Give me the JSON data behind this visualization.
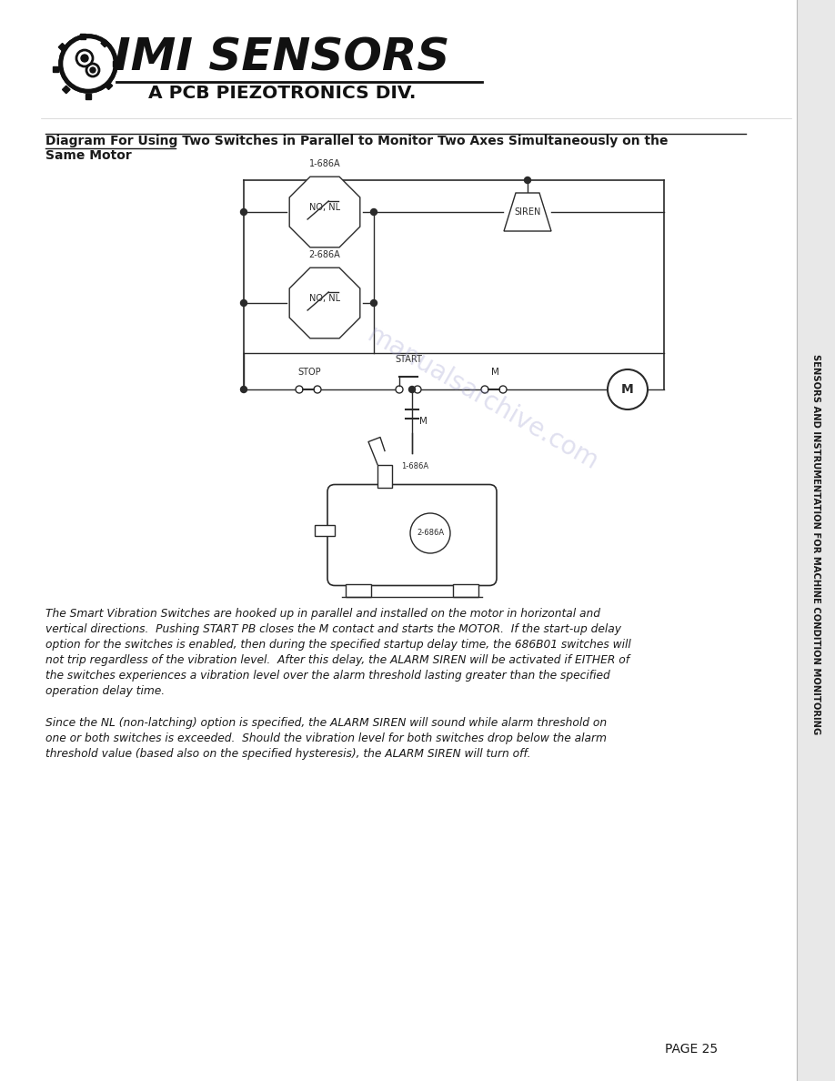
{
  "title_line1": "Diagram For Using Two Switches in Parallel to Monitor Two Axes Simultaneously on the",
  "title_line2": "Same Motor",
  "sidebar_text": "SENSORS AND INSTRUMENTATION FOR MACHINE CONDITION MONITORING",
  "page_number": "PAGE 25",
  "para1_line1": "The Smart Vibration Switches are hooked up in parallel and installed on the motor in horizontal and",
  "para1_line2": "vertical directions.  Pushing START PB closes the M contact and starts the MOTOR.  If the start-up delay",
  "para1_line3": "option for the switches is enabled, then during the specified startup delay time, the 686B01 switches will",
  "para1_line4": "not trip regardless of the vibration level.  After this delay, the ALARM SIREN will be activated if EITHER of",
  "para1_line5": "the switches experiences a vibration level over the alarm threshold lasting greater than the specified",
  "para1_line6": "operation delay time.",
  "para2_line1": "Since the NL (non-latching) option is specified, the ALARM SIREN will sound while alarm threshold on",
  "para2_line2": "one or both switches is exceeded.  Should the vibration level for both switches drop below the alarm",
  "para2_line3": "threshold value (based also on the specified hysteresis), the ALARM SIREN will turn off.",
  "watermark": "manualsarchive.com",
  "bg_color": "#ffffff",
  "line_color": "#2a2a2a",
  "text_color": "#1a1a1a",
  "sidebar_bg": "#e8e8e8",
  "sidebar_border": "#bbbbbb"
}
